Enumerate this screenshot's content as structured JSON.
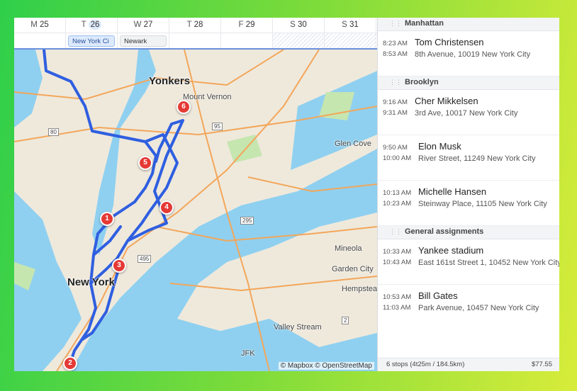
{
  "calendar": {
    "days": [
      {
        "dow": "M",
        "date": "25"
      },
      {
        "dow": "T",
        "date": "26",
        "today": true
      },
      {
        "dow": "W",
        "date": "27"
      },
      {
        "dow": "T",
        "date": "28"
      },
      {
        "dow": "F",
        "date": "29"
      },
      {
        "dow": "S",
        "date": "30"
      },
      {
        "dow": "S",
        "date": "31"
      }
    ],
    "events": [
      {
        "day": "26",
        "label": "New York Ci"
      },
      {
        "day": "27",
        "label": "Newark"
      }
    ]
  },
  "map": {
    "labels": {
      "yonkers": "Yonkers",
      "mount_vernon": "Mount Vernon",
      "glen_cove": "Glen Cove",
      "mineola": "Mineola",
      "garden_city": "Garden City",
      "hempstead": "Hempstead",
      "new_york": "New York",
      "valley_stream": "Valley Stream",
      "jfk": "JFK"
    },
    "shields": [
      "80",
      "95",
      "295",
      "495",
      "2"
    ],
    "markers": [
      "1",
      "2",
      "3",
      "4",
      "5",
      "6"
    ],
    "attribution": "© Mapbox © OpenStreetMap",
    "route_color": "#2f5fe0",
    "marker_color": "#e53935"
  },
  "panel": {
    "groups": [
      {
        "name": "Manhattan",
        "stops": [
          {
            "start": "8:23 AM",
            "end": "8:53 AM",
            "name": "Tom Christensen",
            "address": "8th Avenue, 10019 New York City"
          }
        ]
      },
      {
        "name": "Brooklyn",
        "stops": [
          {
            "start": "9:16 AM",
            "end": "9:31 AM",
            "name": "Cher Mikkelsen",
            "address": "3rd Ave, 10017 New York City"
          },
          {
            "start": "9:50 AM",
            "end": "10:00 AM",
            "name": "Elon Musk",
            "address": "River Street, 11249 New York City"
          },
          {
            "start": "10:13 AM",
            "end": "10:23 AM",
            "name": "Michelle Hansen",
            "address": "Steinway Place, 11105 New York City"
          }
        ]
      },
      {
        "name": "General assignments",
        "stops": [
          {
            "start": "10:33 AM",
            "end": "10:43 AM",
            "name": "Yankee stadium",
            "address": "East 161st Street 1, 10452 New York City"
          },
          {
            "start": "10:53 AM",
            "end": "11:03 AM",
            "name": "Bill Gates",
            "address": "Park Avenue, 10457 New York City"
          }
        ]
      }
    ],
    "footer": {
      "summary": "6 stops (4t25m / 184.5km)",
      "cost": "$77.55"
    }
  }
}
